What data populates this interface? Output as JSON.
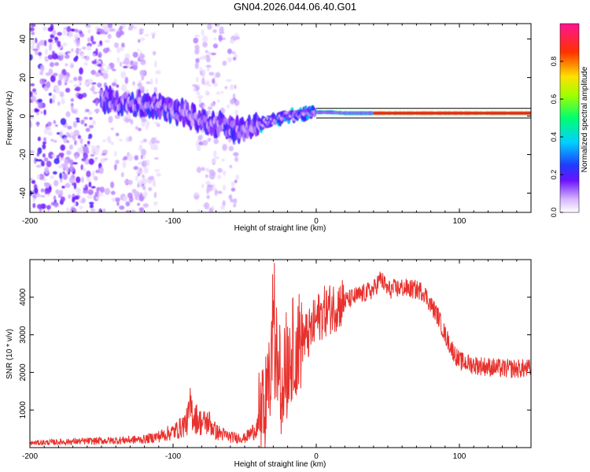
{
  "title": "GN04.2026.044.06.40.G01",
  "chart_data": [
    {
      "type": "heatmap",
      "xlabel": "Height of straight line (km)",
      "ylabel": "Frequency (Hz)",
      "xlim": [
        -200,
        150
      ],
      "ylim": [
        -50,
        48
      ],
      "xticks": [
        "-200",
        "-100",
        "0",
        "100"
      ],
      "yticks": [
        "40",
        "20",
        "0",
        "-20",
        "-40"
      ],
      "colorbar": {
        "label": "Normalized spectral amplitude",
        "range": [
          0,
          1
        ],
        "ticks": [
          "0.0",
          "0.2",
          "0.4",
          "0.6",
          "0.8"
        ]
      },
      "trace": {
        "x": [
          -150,
          -140,
          -130,
          -120,
          -110,
          -100,
          -90,
          -80,
          -70,
          -60,
          -50,
          -40,
          -30,
          -20,
          -10,
          0,
          10,
          20,
          40,
          60,
          80,
          90,
          100,
          120,
          150
        ],
        "freq": [
          9,
          8,
          7,
          6,
          5,
          3,
          1,
          -2,
          -4,
          -6,
          -7,
          -5,
          -2,
          0,
          1,
          2,
          2,
          1.5,
          1.5,
          1.5,
          1.5,
          1.5,
          1.5,
          1.5,
          1.5
        ]
      }
    },
    {
      "type": "line",
      "xlabel": "Height of straight line (km)",
      "ylabel": "SNR (10 * v/v)",
      "xlim": [
        -200,
        150
      ],
      "ylim": [
        0,
        5000
      ],
      "xticks": [
        "-200",
        "-100",
        "0",
        "100"
      ],
      "yticks": [
        "1000",
        "2000",
        "3000",
        "4000"
      ],
      "series": [
        {
          "name": "SNR",
          "color": "#e8312d",
          "x": [
            -200,
            -180,
            -160,
            -140,
            -120,
            -110,
            -100,
            -95,
            -90,
            -88,
            -85,
            -80,
            -75,
            -70,
            -60,
            -50,
            -45,
            -40,
            -35,
            -33,
            -31,
            -30,
            -28,
            -25,
            -20,
            -15,
            -10,
            -5,
            0,
            5,
            10,
            20,
            30,
            40,
            45,
            50,
            60,
            70,
            75,
            80,
            85,
            90,
            95,
            100,
            110,
            120,
            130,
            140,
            150
          ],
          "y": [
            120,
            150,
            170,
            190,
            220,
            300,
            420,
            520,
            700,
            1050,
            820,
            650,
            680,
            420,
            280,
            250,
            400,
            600,
            1100,
            1500,
            2600,
            4200,
            2500,
            1900,
            2400,
            2700,
            2900,
            3000,
            3400,
            3600,
            3700,
            3900,
            4050,
            4200,
            4500,
            4200,
            4250,
            4200,
            4150,
            3800,
            3500,
            3000,
            2600,
            2300,
            2200,
            2150,
            2100,
            2100,
            2100
          ]
        }
      ]
    }
  ]
}
